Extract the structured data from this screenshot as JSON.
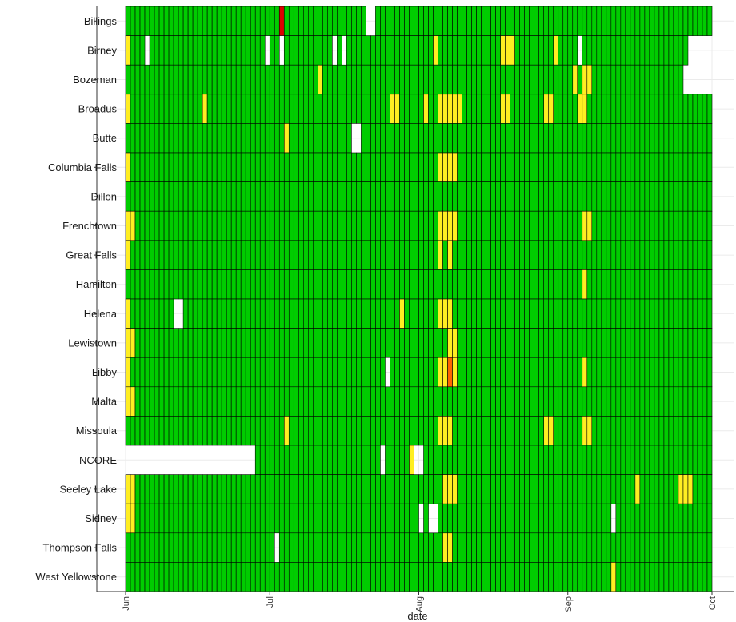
{
  "chart_data": {
    "type": "heatmap",
    "xlabel": "date",
    "ylabel": "",
    "x_start": "2023-06-01",
    "x_end": "2023-10-01",
    "x_ticks": [
      {
        "date": "2023-06-01",
        "label": "Jun"
      },
      {
        "date": "2023-07-01",
        "label": "Jul"
      },
      {
        "date": "2023-08-01",
        "label": "Aug"
      },
      {
        "date": "2023-09-01",
        "label": "Sep"
      },
      {
        "date": "2023-10-01",
        "label": "Oct"
      }
    ],
    "categories": [
      "Billings",
      "Birney",
      "Bozeman",
      "Broadus",
      "Butte",
      "Columbia Falls",
      "Dillon",
      "Frenchtown",
      "Great Falls",
      "Hamilton",
      "Helena",
      "Lewistown",
      "Libby",
      "Malta",
      "Missoula",
      "NCORE",
      "Seeley Lake",
      "Sidney",
      "Thompson Falls",
      "West Yellowstone"
    ],
    "colors": {
      "good": "#00cc00",
      "moderate": "#ffee22",
      "usg": "#ff6600",
      "unhealthy": "#dd0000",
      "missing": "#ffffff",
      "cell_border": "#000000",
      "gridline": "#ebebeb",
      "axis": "#333333"
    },
    "default_category": "good",
    "exceptions": {
      "Billings": [
        [
          "2023-07-03",
          "2023-07-03",
          "unhealthy"
        ],
        [
          "2023-07-21",
          "2023-07-22",
          "missing"
        ]
      ],
      "Birney": [
        [
          "2023-06-01",
          "2023-06-01",
          "moderate"
        ],
        [
          "2023-06-05",
          "2023-06-05",
          "missing"
        ],
        [
          "2023-06-30",
          "2023-06-30",
          "missing"
        ],
        [
          "2023-07-03",
          "2023-07-03",
          "missing"
        ],
        [
          "2023-07-14",
          "2023-07-14",
          "missing"
        ],
        [
          "2023-07-16",
          "2023-07-16",
          "missing"
        ],
        [
          "2023-08-04",
          "2023-08-04",
          "moderate"
        ],
        [
          "2023-08-18",
          "2023-08-20",
          "moderate"
        ],
        [
          "2023-08-29",
          "2023-08-29",
          "moderate"
        ],
        [
          "2023-09-03",
          "2023-09-03",
          "missing"
        ],
        [
          "2023-09-26",
          "2023-09-30",
          "missing"
        ]
      ],
      "Bozeman": [
        [
          "2023-07-11",
          "2023-07-11",
          "moderate"
        ],
        [
          "2023-09-02",
          "2023-09-02",
          "moderate"
        ],
        [
          "2023-09-04",
          "2023-09-05",
          "moderate"
        ],
        [
          "2023-09-25",
          "2023-09-30",
          "missing"
        ]
      ],
      "Broadus": [
        [
          "2023-06-01",
          "2023-06-01",
          "moderate"
        ],
        [
          "2023-06-17",
          "2023-06-17",
          "moderate"
        ],
        [
          "2023-07-26",
          "2023-07-27",
          "moderate"
        ],
        [
          "2023-08-02",
          "2023-08-02",
          "moderate"
        ],
        [
          "2023-08-05",
          "2023-08-09",
          "moderate"
        ],
        [
          "2023-08-18",
          "2023-08-19",
          "moderate"
        ],
        [
          "2023-08-27",
          "2023-08-28",
          "moderate"
        ],
        [
          "2023-09-03",
          "2023-09-04",
          "moderate"
        ]
      ],
      "Butte": [
        [
          "2023-07-04",
          "2023-07-04",
          "moderate"
        ],
        [
          "2023-07-18",
          "2023-07-19",
          "missing"
        ]
      ],
      "Columbia Falls": [
        [
          "2023-06-01",
          "2023-06-01",
          "moderate"
        ],
        [
          "2023-08-05",
          "2023-08-08",
          "moderate"
        ]
      ],
      "Dillon": [],
      "Frenchtown": [
        [
          "2023-06-01",
          "2023-06-02",
          "moderate"
        ],
        [
          "2023-08-05",
          "2023-08-08",
          "moderate"
        ],
        [
          "2023-09-04",
          "2023-09-05",
          "moderate"
        ]
      ],
      "Great Falls": [
        [
          "2023-06-01",
          "2023-06-01",
          "moderate"
        ],
        [
          "2023-08-05",
          "2023-08-05",
          "moderate"
        ],
        [
          "2023-08-07",
          "2023-08-07",
          "moderate"
        ]
      ],
      "Hamilton": [
        [
          "2023-09-04",
          "2023-09-04",
          "moderate"
        ]
      ],
      "Helena": [
        [
          "2023-06-01",
          "2023-06-01",
          "moderate"
        ],
        [
          "2023-06-11",
          "2023-06-12",
          "missing"
        ],
        [
          "2023-07-28",
          "2023-07-28",
          "moderate"
        ],
        [
          "2023-08-05",
          "2023-08-07",
          "moderate"
        ]
      ],
      "Lewistown": [
        [
          "2023-06-01",
          "2023-06-02",
          "moderate"
        ],
        [
          "2023-08-07",
          "2023-08-08",
          "moderate"
        ]
      ],
      "Libby": [
        [
          "2023-06-01",
          "2023-06-01",
          "moderate"
        ],
        [
          "2023-07-25",
          "2023-07-25",
          "missing"
        ],
        [
          "2023-08-05",
          "2023-08-06",
          "moderate"
        ],
        [
          "2023-08-07",
          "2023-08-07",
          "usg"
        ],
        [
          "2023-08-08",
          "2023-08-08",
          "moderate"
        ],
        [
          "2023-09-04",
          "2023-09-04",
          "moderate"
        ]
      ],
      "Malta": [
        [
          "2023-06-01",
          "2023-06-02",
          "moderate"
        ]
      ],
      "Missoula": [
        [
          "2023-07-04",
          "2023-07-04",
          "moderate"
        ],
        [
          "2023-08-05",
          "2023-08-07",
          "moderate"
        ],
        [
          "2023-08-27",
          "2023-08-28",
          "moderate"
        ],
        [
          "2023-09-04",
          "2023-09-05",
          "moderate"
        ]
      ],
      "NCORE": [
        [
          "2023-06-01",
          "2023-06-27",
          "missing"
        ],
        [
          "2023-07-24",
          "2023-07-24",
          "missing"
        ],
        [
          "2023-07-30",
          "2023-07-30",
          "moderate"
        ],
        [
          "2023-07-31",
          "2023-08-01",
          "missing"
        ]
      ],
      "Seeley Lake": [
        [
          "2023-06-01",
          "2023-06-02",
          "moderate"
        ],
        [
          "2023-08-06",
          "2023-08-08",
          "moderate"
        ],
        [
          "2023-09-15",
          "2023-09-15",
          "moderate"
        ],
        [
          "2023-09-24",
          "2023-09-26",
          "moderate"
        ]
      ],
      "Sidney": [
        [
          "2023-06-01",
          "2023-06-02",
          "moderate"
        ],
        [
          "2023-08-01",
          "2023-08-01",
          "missing"
        ],
        [
          "2023-08-03",
          "2023-08-04",
          "missing"
        ],
        [
          "2023-09-10",
          "2023-09-10",
          "missing"
        ]
      ],
      "Thompson Falls": [
        [
          "2023-07-02",
          "2023-07-02",
          "missing"
        ],
        [
          "2023-08-06",
          "2023-08-07",
          "moderate"
        ]
      ],
      "West Yellowstone": [
        [
          "2023-09-10",
          "2023-09-10",
          "moderate"
        ]
      ]
    }
  }
}
